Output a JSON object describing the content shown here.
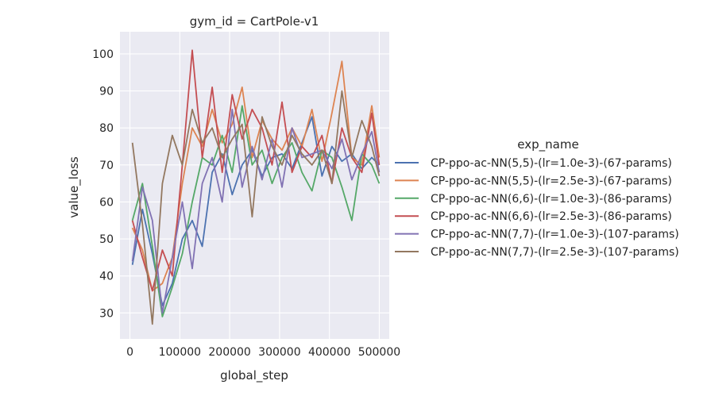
{
  "chart_data": {
    "type": "line",
    "title": "gym_id = CartPole-v1",
    "xlabel": "global_step",
    "ylabel": "value_loss",
    "xlim": [
      -20000,
      520000
    ],
    "ylim": [
      23,
      106
    ],
    "xticks": [
      0,
      100000,
      200000,
      300000,
      400000,
      500000
    ],
    "yticks": [
      30,
      40,
      50,
      60,
      70,
      80,
      90,
      100
    ],
    "grid": true,
    "legend": {
      "title": "exp_name",
      "placement": "right-outside"
    },
    "series": [
      {
        "name": "CP-ppo-ac-NN(5,5)-(lr=1.0e-3)-(67-params)",
        "color": "#4c72b0",
        "x": [
          5000,
          25000,
          45000,
          65000,
          85000,
          105000,
          125000,
          145000,
          165000,
          185000,
          205000,
          225000,
          245000,
          265000,
          285000,
          305000,
          325000,
          345000,
          365000,
          385000,
          405000,
          425000,
          445000,
          465000,
          485000,
          500000
        ],
        "y": [
          43,
          58,
          46,
          32,
          38,
          50,
          55,
          48,
          68,
          73,
          62,
          70,
          74,
          67,
          72,
          73,
          69,
          76,
          83,
          67,
          75,
          71,
          73,
          69,
          72,
          70
        ]
      },
      {
        "name": "CP-ppo-ac-NN(5,5)-(lr=2.5e-3)-(67-params)",
        "color": "#dd8452",
        "x": [
          5000,
          25000,
          45000,
          65000,
          85000,
          105000,
          125000,
          145000,
          165000,
          185000,
          205000,
          225000,
          245000,
          265000,
          285000,
          305000,
          325000,
          345000,
          365000,
          385000,
          405000,
          425000,
          445000,
          465000,
          485000,
          500000
        ],
        "y": [
          53,
          47,
          36,
          38,
          45,
          65,
          80,
          75,
          85,
          76,
          81,
          91,
          72,
          82,
          77,
          74,
          80,
          75,
          85,
          71,
          84,
          98,
          72,
          70,
          86,
          72
        ]
      },
      {
        "name": "CP-ppo-ac-NN(6,6)-(lr=1.0e-3)-(86-params)",
        "color": "#55a868",
        "x": [
          5000,
          25000,
          45000,
          65000,
          85000,
          105000,
          125000,
          145000,
          165000,
          185000,
          205000,
          225000,
          245000,
          265000,
          285000,
          305000,
          325000,
          345000,
          365000,
          385000,
          405000,
          425000,
          445000,
          465000,
          485000,
          500000
        ],
        "y": [
          55,
          65,
          48,
          29,
          37,
          46,
          60,
          72,
          70,
          78,
          68,
          86,
          70,
          74,
          65,
          72,
          76,
          68,
          63,
          74,
          72,
          64,
          55,
          73,
          70,
          65
        ]
      },
      {
        "name": "CP-ppo-ac-NN(6,6)-(lr=2.5e-3)-(86-params)",
        "color": "#c44e52",
        "x": [
          5000,
          25000,
          45000,
          65000,
          85000,
          105000,
          125000,
          145000,
          165000,
          185000,
          205000,
          225000,
          245000,
          265000,
          285000,
          305000,
          325000,
          345000,
          365000,
          385000,
          405000,
          425000,
          445000,
          465000,
          485000,
          500000
        ],
        "y": [
          55,
          45,
          36,
          47,
          40,
          70,
          101,
          72,
          91,
          68,
          89,
          77,
          85,
          80,
          70,
          87,
          68,
          75,
          72,
          78,
          65,
          80,
          72,
          68,
          84,
          70
        ]
      },
      {
        "name": "CP-ppo-ac-NN(7,7)-(lr=1.0e-3)-(107-params)",
        "color": "#8172b3",
        "x": [
          5000,
          25000,
          45000,
          65000,
          85000,
          105000,
          125000,
          145000,
          165000,
          185000,
          205000,
          225000,
          245000,
          265000,
          285000,
          305000,
          325000,
          345000,
          365000,
          385000,
          405000,
          425000,
          445000,
          465000,
          485000,
          500000
        ],
        "y": [
          44,
          64,
          55,
          30,
          45,
          60,
          42,
          65,
          72,
          60,
          85,
          64,
          75,
          66,
          77,
          64,
          80,
          72,
          73,
          74,
          69,
          77,
          66,
          73,
          79,
          68
        ]
      },
      {
        "name": "CP-ppo-ac-NN(7,7)-(lr=2.5e-3)-(107-params)",
        "color": "#937860",
        "x": [
          5000,
          25000,
          45000,
          65000,
          85000,
          105000,
          125000,
          145000,
          165000,
          185000,
          205000,
          225000,
          245000,
          265000,
          285000,
          305000,
          325000,
          345000,
          365000,
          385000,
          405000,
          425000,
          445000,
          465000,
          485000,
          500000
        ],
        "y": [
          76,
          54,
          27,
          65,
          78,
          70,
          85,
          76,
          80,
          72,
          77,
          81,
          56,
          83,
          75,
          70,
          78,
          73,
          70,
          74,
          65,
          90,
          72,
          82,
          75,
          67
        ]
      }
    ]
  }
}
